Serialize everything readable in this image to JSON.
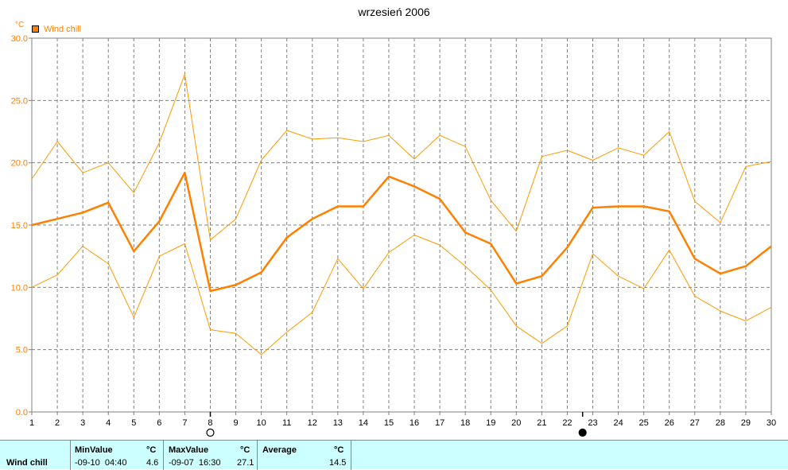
{
  "chart_data": {
    "type": "line",
    "title": "wrzesień 2006",
    "ylabel": "°C",
    "legend": "Wind chill",
    "x": [
      1,
      2,
      3,
      4,
      5,
      6,
      7,
      8,
      9,
      10,
      11,
      12,
      13,
      14,
      15,
      16,
      17,
      18,
      19,
      20,
      21,
      22,
      23,
      24,
      25,
      26,
      27,
      28,
      29,
      30
    ],
    "ylim": [
      0,
      30
    ],
    "yticks": [
      "0.0",
      "5.0",
      "10.0",
      "15.0",
      "20.0",
      "25.0",
      "30.0"
    ],
    "grid": true,
    "markers": [
      {
        "x": 8,
        "symbol": "open-circle"
      },
      {
        "x": 22.6,
        "symbol": "filled-circle"
      }
    ],
    "series": [
      {
        "name": "Wind chill",
        "role": "average",
        "values": [
          15.0,
          15.5,
          16.0,
          16.8,
          12.9,
          15.3,
          19.2,
          9.7,
          10.2,
          11.2,
          14.0,
          15.5,
          16.5,
          16.5,
          18.9,
          18.1,
          17.1,
          14.4,
          13.5,
          10.3,
          10.9,
          13.2,
          16.4,
          16.5,
          16.5,
          16.1,
          12.3,
          11.1,
          11.7,
          13.3
        ]
      },
      {
        "role": "max",
        "values": [
          18.7,
          21.7,
          19.2,
          20.0,
          17.6,
          21.6,
          27.1,
          13.8,
          15.5,
          20.2,
          22.6,
          21.9,
          22.0,
          21.7,
          22.2,
          20.3,
          22.2,
          21.3,
          17.0,
          14.5,
          20.5,
          21.0,
          20.2,
          21.2,
          20.6,
          22.5,
          16.9,
          15.2,
          19.7,
          20.1
        ]
      },
      {
        "role": "min",
        "values": [
          10.0,
          11.0,
          13.3,
          11.9,
          7.6,
          12.5,
          13.5,
          6.6,
          6.3,
          4.6,
          6.4,
          8.0,
          12.3,
          9.9,
          12.8,
          14.2,
          13.4,
          11.7,
          9.8,
          6.9,
          5.5,
          6.9,
          12.7,
          10.9,
          9.9,
          13.0,
          9.3,
          8.1,
          7.3,
          8.4
        ]
      }
    ],
    "colors": {
      "average": "#ff8000",
      "minmax": "#ff9900",
      "axis": "#808080",
      "tick_label": "#ff8000"
    }
  },
  "stats": {
    "row_label": "Wind chill",
    "min": {
      "header": "MinValue",
      "unit": "°C",
      "time": "-09-10  04:40",
      "value": "4.6"
    },
    "max": {
      "header": "MaxValue",
      "unit": "°C",
      "time": "-09-07  16:30",
      "value": "27.1"
    },
    "avg": {
      "header": "Average",
      "unit": "°C",
      "value": "14.5"
    }
  }
}
